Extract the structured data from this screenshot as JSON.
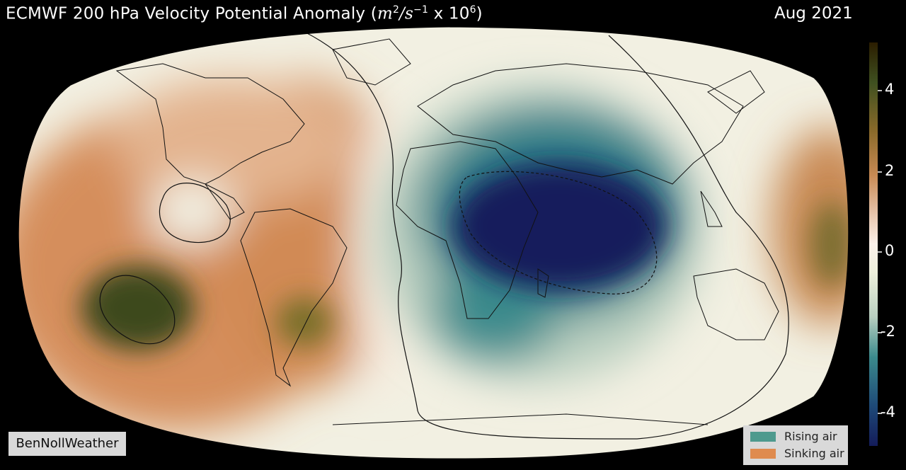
{
  "title": {
    "main": "ECMWF 200 hPa Velocity Potential Anomaly (",
    "unit_m": "m",
    "unit_sup2": "2",
    "unit_s": "/s",
    "unit_sup_neg1": "−1",
    "unit_x": " x 10",
    "unit_sup6": "6",
    "close": ")"
  },
  "date": "Aug 2021",
  "credit": "BenNollWeather",
  "colorbar": {
    "ticks": [
      "4",
      "2",
      "0",
      "-2",
      "-4"
    ],
    "colors": [
      "#2b1d00",
      "#3f5020",
      "#8a6a2a",
      "#c98a54",
      "#e9c8b0",
      "#fbf1ea",
      "#eef0dc",
      "#b9cfc0",
      "#3b8a8c",
      "#1e4a78",
      "#141c5a"
    ]
  },
  "legend": {
    "items": [
      {
        "label": "Rising air",
        "color": "#4e9a8e"
      },
      {
        "label": "Sinking air",
        "color": "#df8b4f"
      }
    ]
  },
  "map_colors": {
    "ocean_base": "#f2f0e2",
    "sinking_strong": "#3e4a1e",
    "sinking": "#d58e5c",
    "rising": "#2d7f88",
    "rising_strong": "#121c5c"
  }
}
